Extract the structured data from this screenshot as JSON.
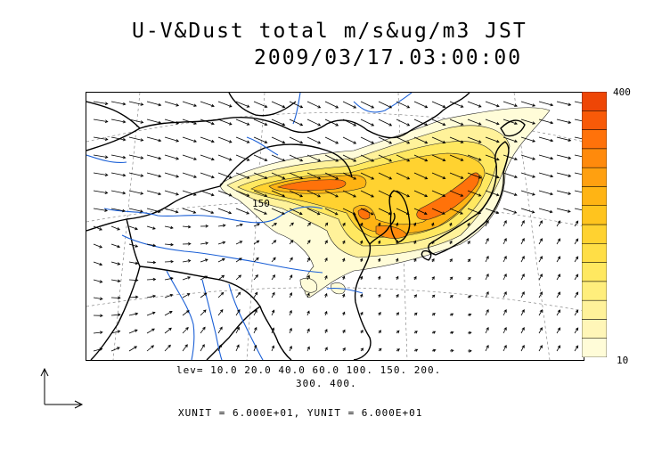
{
  "title": {
    "line1": "U-V&Dust total m/s&ug/m3 JST",
    "line2": "2009/03/17.03:00:00"
  },
  "colorbar": {
    "max_label": "400",
    "min_label": "10",
    "colors": [
      "#fffcd8",
      "#fff6b8",
      "#fff29a",
      "#ffee7c",
      "#ffe860",
      "#ffde46",
      "#ffd230",
      "#ffc41e",
      "#ffb414",
      "#ffa010",
      "#ff8a0c",
      "#ff720a",
      "#f85a08",
      "#ee4606"
    ]
  },
  "levels": {
    "line1": "lev= 10.0 20.0 40.0 60.0 100. 150. 200.",
    "line2": "300. 400."
  },
  "units": "XUNIT = 6.000E+01, YUNIT = 6.000E+01",
  "map_label": "150",
  "colors": {
    "coast": "#000000",
    "river": "#1a5fd6",
    "arrow": "#000000"
  },
  "icons": {
    "reference_vector": "reference-vector-icon"
  }
}
